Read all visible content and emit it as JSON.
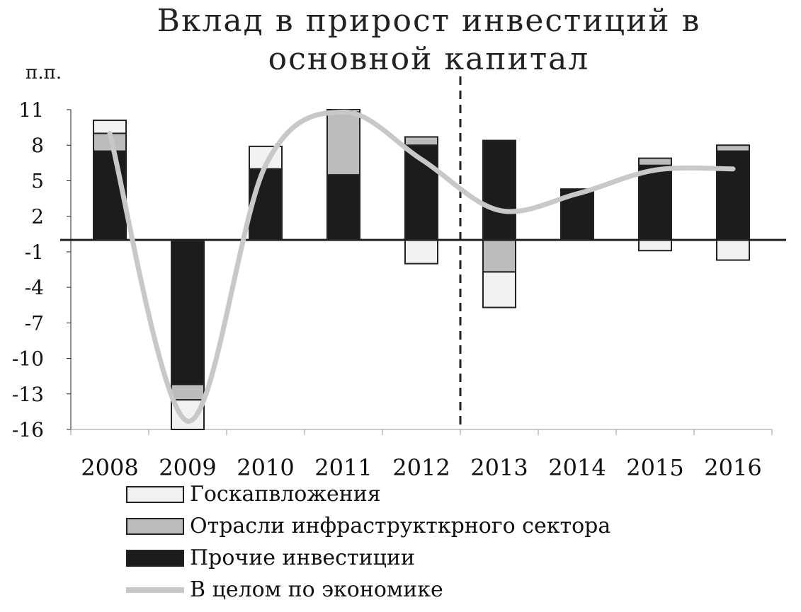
{
  "colors": {
    "gov": "#f2f2f2",
    "infra": "#bcbcbc",
    "other": "#1c1c1c",
    "total_line": "#c8c8c8",
    "axis": "#222222"
  },
  "chart_data": {
    "type": "bar",
    "stacked": true,
    "title": "Вклад в прирост инвестиций в основной капитал",
    "title_lines": [
      "Вклад в прирост инвестиций в",
      "основной капитал"
    ],
    "ylabel": "п.п.",
    "xlabel": "",
    "ylim": [
      -16,
      11
    ],
    "yticks": [
      11,
      8,
      5,
      2,
      -1,
      -4,
      -7,
      -10,
      -13,
      -16
    ],
    "categories": [
      "2008",
      "2009",
      "2010",
      "2011",
      "2012",
      "2013",
      "2014",
      "2015",
      "2016"
    ],
    "series": [
      {
        "name": "Прочие инвестиции",
        "key": "other",
        "values": [
          7.5,
          -12.2,
          6.0,
          5.5,
          8.0,
          8.4,
          4.3,
          6.3,
          7.5
        ]
      },
      {
        "name": "Отрасли инфраструкткрного сектора",
        "key": "infra",
        "values": [
          1.5,
          -1.3,
          0.0,
          5.3,
          0.7,
          -2.7,
          0.0,
          0.6,
          0.5
        ]
      },
      {
        "name": "Госкапвложения",
        "key": "gov",
        "values": [
          1.1,
          -2.5,
          1.9,
          0.2,
          -2.0,
          -3.0,
          0.0,
          -0.9,
          -1.7
        ]
      }
    ],
    "line": {
      "name": "В целом по экономике",
      "key": "total_line",
      "values": [
        9.0,
        -15.3,
        6.3,
        10.8,
        6.8,
        2.5,
        3.9,
        5.9,
        6.0
      ]
    },
    "divider_after": "2012",
    "legend_position": "bottom-left",
    "grid": false
  }
}
